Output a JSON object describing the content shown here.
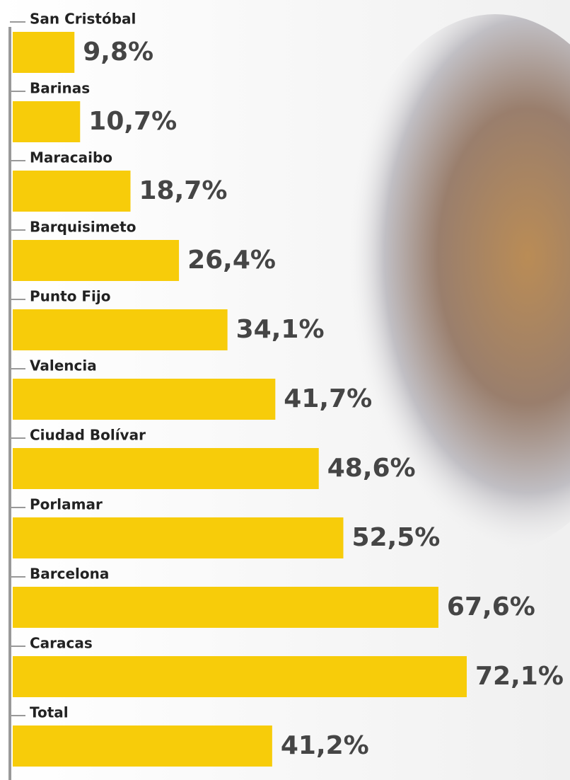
{
  "chart_data": {
    "type": "bar",
    "orientation": "horizontal",
    "categories": [
      "San Cristóbal",
      "Barinas",
      "Maracaibo",
      "Barquisimeto",
      "Punto Fijo",
      "Valencia",
      "Ciudad Bolívar",
      "Porlamar",
      "Barcelona",
      "Caracas",
      "Total"
    ],
    "values": [
      9.8,
      10.7,
      18.7,
      26.4,
      34.1,
      41.7,
      48.6,
      52.5,
      67.6,
      72.1,
      41.2
    ],
    "value_labels": [
      "9,8%",
      "10,7%",
      "18,7%",
      "26,4%",
      "34,1%",
      "41,7%",
      "48,6%",
      "52,5%",
      "67,6%",
      "72,1%",
      "41,2%"
    ],
    "color": "#f7cc0a"
  }
}
